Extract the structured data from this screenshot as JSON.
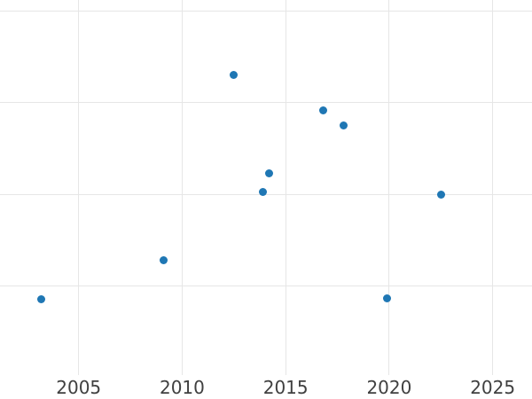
{
  "chart_data": {
    "type": "scatter",
    "grid": true,
    "y_axis_unlabeled": true,
    "x_axis": {
      "tick_labels": [
        "2005",
        "2010",
        "2015",
        "2020",
        "2025"
      ],
      "tick_values": [
        2005,
        2010,
        2015,
        2020,
        2025
      ],
      "range": [
        2001.2,
        2026.9
      ]
    },
    "y_axis": {
      "tick_labels": [],
      "gridline_values": [
        1,
        2,
        3,
        4
      ],
      "range": [
        0.03,
        4.12
      ],
      "units": "gridline-units (no labels visible in screenshot)"
    },
    "points": [
      {
        "x": 2003.2,
        "y": 0.86
      },
      {
        "x": 2009.1,
        "y": 1.28
      },
      {
        "x": 2012.5,
        "y": 3.3
      },
      {
        "x": 2013.9,
        "y": 2.03
      },
      {
        "x": 2014.2,
        "y": 2.23
      },
      {
        "x": 2016.8,
        "y": 2.92
      },
      {
        "x": 2017.8,
        "y": 2.75
      },
      {
        "x": 2019.9,
        "y": 0.87
      },
      {
        "x": 2022.5,
        "y": 2.0
      }
    ],
    "marker_size_px": 9,
    "colors": {
      "marker": "#1f77b4",
      "grid": "#e6e6e6",
      "tick_label": "#404040",
      "background": "#ffffff"
    }
  }
}
